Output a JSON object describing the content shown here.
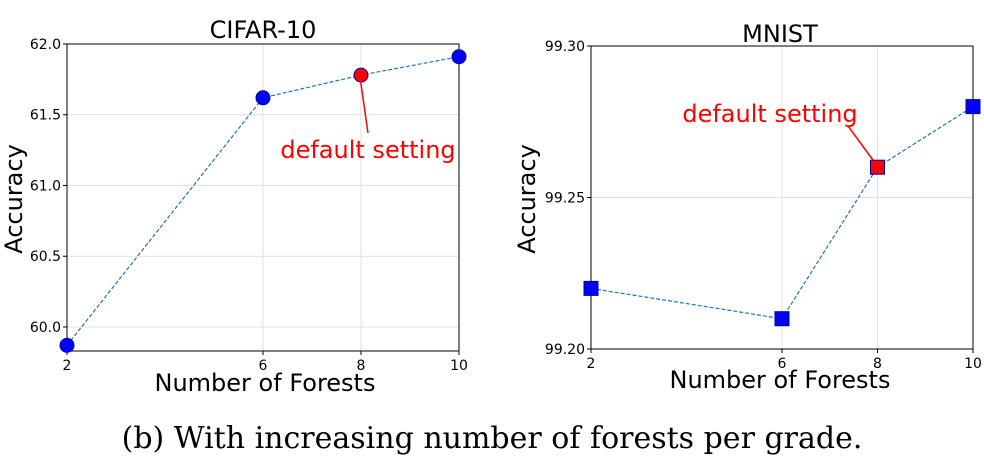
{
  "chart_data": [
    {
      "type": "line",
      "title": "CIFAR-10",
      "xlabel": "Number of Forests",
      "ylabel": "Accuracy",
      "x": [
        2,
        6,
        8,
        10
      ],
      "series": [
        {
          "values": [
            59.87,
            61.62,
            61.78,
            61.91
          ]
        }
      ],
      "xlim": [
        2,
        10
      ],
      "ylim": [
        59.83,
        62.0
      ],
      "xticks": [
        2,
        6,
        8,
        10
      ],
      "xtick_labels": [
        "2",
        "6",
        "8",
        "10"
      ],
      "yticks": [
        60.0,
        60.5,
        61.0,
        61.5,
        62.0
      ],
      "ytick_labels": [
        "60.0",
        "60.5",
        "61.0",
        "61.5",
        "62.0"
      ],
      "grid": true,
      "marker": "circle",
      "highlight": {
        "index": 2,
        "label": "default setting"
      },
      "colors": {
        "line": "#1f77b4",
        "marker": "#0000ff",
        "highlight": "#ff0000"
      }
    },
    {
      "type": "line",
      "title": "MNIST",
      "xlabel": "Number of Forests",
      "ylabel": "Accuracy",
      "x": [
        2,
        6,
        8,
        10
      ],
      "series": [
        {
          "values": [
            99.22,
            99.21,
            99.26,
            99.28
          ]
        }
      ],
      "xlim": [
        2,
        10
      ],
      "ylim": [
        99.2,
        99.3
      ],
      "xticks": [
        2,
        6,
        8,
        10
      ],
      "xtick_labels": [
        "2",
        "6",
        "8",
        "10"
      ],
      "yticks": [
        99.2,
        99.25,
        99.3
      ],
      "ytick_labels": [
        "99.20",
        "99.25",
        "99.30"
      ],
      "grid": true,
      "marker": "square",
      "highlight": {
        "index": 2,
        "label": "default setting"
      },
      "colors": {
        "line": "#1f77b4",
        "marker": "#0000ff",
        "highlight": "#ff0000"
      }
    }
  ],
  "caption": "(b) With increasing number of forests per grade."
}
